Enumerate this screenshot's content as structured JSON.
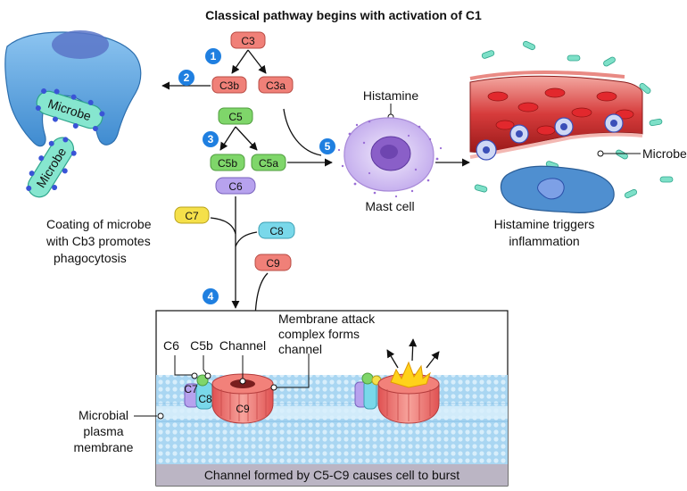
{
  "title": "Classical pathway begins with activation of C1",
  "steps": [
    "1",
    "2",
    "3",
    "4",
    "5"
  ],
  "proteins": {
    "c3": "C3",
    "c3b": "C3b",
    "c3a": "C3a",
    "c5": "C5",
    "c5b": "C5b",
    "c5a": "C5a",
    "c6": "C6",
    "c7": "C7",
    "c8": "C8",
    "c9": "C9"
  },
  "labels": {
    "microbe_phago": "Microbe",
    "microbe_small": "Microbe",
    "histamine": "Histamine",
    "mast_cell": "Mast cell",
    "microbe_right": "Microbe",
    "coating": [
      "Coating of microbe",
      "with Cb3 promotes",
      "phagocytosis"
    ],
    "inflammation": [
      "Histamine triggers",
      "inflammation"
    ],
    "mac": [
      "Membrane attack",
      "complex forms",
      "channel"
    ],
    "mac_c6": "C6",
    "mac_c5b": "C5b",
    "mac_channel": "Channel",
    "mac_c7": "C7",
    "mac_c8": "C8",
    "mac_c9": "C9",
    "membrane": [
      "Microbial",
      "plasma",
      "membrane"
    ],
    "burst": "Channel formed by C5-C9 causes cell to burst"
  },
  "colors": {
    "step_badge": "#1f7fe0",
    "c3_group": "#f08078",
    "c5_group": "#7fd66a",
    "c6": "#b7a2ee",
    "c7": "#f5e04a",
    "c8": "#79d8ea",
    "c9": "#f08078",
    "phagocyte": "#6aaee6",
    "microbe": "#7ee0c8",
    "mast_cell": "#b79ae8",
    "membrane": "#9fd0ef",
    "burst_bar": "#bbb5c4"
  }
}
